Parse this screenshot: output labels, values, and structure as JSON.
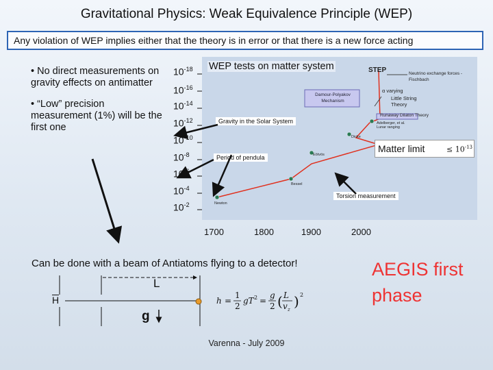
{
  "title": "Gravitational Physics: Weak Equivalence Principle (WEP)",
  "banner": "Any violation of WEP implies either that the theory is in error or that there is a new force acting",
  "bullets": [
    "• No direct measurements on gravity effects on antimatter",
    "• “Low” precision measurement (1%) will be the first one"
  ],
  "exponents": [
    {
      "base": "10",
      "exp": "-18"
    },
    {
      "base": "10",
      "exp": "-16"
    },
    {
      "base": "10",
      "exp": "-14"
    },
    {
      "base": "10",
      "exp": "-12"
    },
    {
      "base": "10",
      "exp": "-10"
    },
    {
      "base": "10",
      "exp": "-8"
    },
    {
      "base": "10",
      "exp": "-6"
    },
    {
      "base": "10",
      "exp": "-4"
    },
    {
      "base": "10",
      "exp": "-2"
    }
  ],
  "plot": {
    "title": "WEP tests on matter system",
    "labels": {
      "step": "STEP",
      "neutrino": "Neutrino exchange forces - Fischbach",
      "alpha": "α varying",
      "damour": "Damour-Polyakov Mechanism",
      "little": "Little String Theory",
      "runaway": "Runaway Dilaton Theory",
      "adelberger": "Adelberger, et al.",
      "lunar": "Lunar ranging",
      "dicke": "Dicke",
      "eotvos": "Eötvös",
      "bessel": "Bessel",
      "newton": "Newton",
      "solar": "Gravity in the Solar System",
      "pendula": "Period of pendula",
      "torsion": "Torsion measurement",
      "matter_limit": "Matter limit",
      "limit_value": "≤ 10",
      "limit_exp": "-13"
    }
  },
  "years": [
    "1700",
    "1800",
    "1900",
    "2000"
  ],
  "beam": {
    "caption": "Can be done with a beam of Antiatoms flying to a detector!",
    "source": "H",
    "length": "L",
    "gravity": "g"
  },
  "aegis": "AEGIS first phase",
  "footer": "Varenna - July 2009",
  "colors": {
    "accent": "#2d64b4",
    "curve": "#e0301e",
    "aegis": "#ee3333"
  }
}
